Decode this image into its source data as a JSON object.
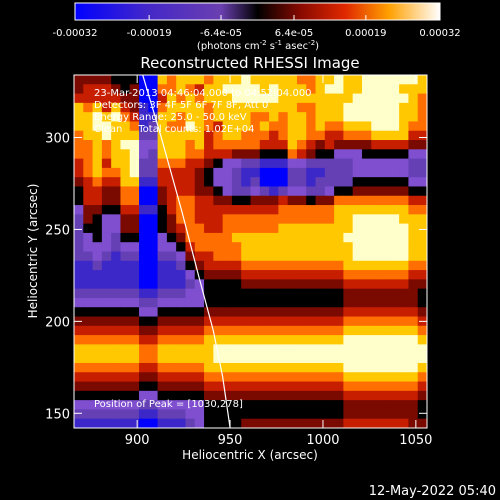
{
  "chart_data": {
    "type": "heatmap",
    "title": "Reconstructed RHESSI Image",
    "xlabel": "Heliocentric X (arcsec)",
    "ylabel": "Heliocentric Y (arcsec)",
    "xlim": [
      866,
      1056
    ],
    "ylim": [
      142,
      334
    ],
    "xticks": [
      900,
      950,
      1000,
      1050
    ],
    "yticks": [
      150,
      200,
      250,
      300
    ],
    "colorbar": {
      "range": [
        -0.00032,
        0.00032
      ],
      "tick_values": [
        -0.00032,
        -0.00019,
        -6.4e-05,
        6.4e-05,
        0.00019,
        0.00032
      ],
      "tick_labels": [
        "-0.00032",
        "-0.00019",
        "-6.4e-05",
        "6.4e-05",
        "0.00019",
        "0.00032"
      ],
      "units_main": "(photons cm",
      "units_exp1": "-2",
      "units_mid1": " s",
      "units_exp2": "-1",
      "units_mid2": " asec",
      "units_exp3": "-2",
      "units_end": ")"
    },
    "info_lines": [
      "23-Mar-2013 04:46:04.000 to 04:52:04.000",
      "Detectors: 3F 4F 5F 6F 7F 8F, Att 0",
      "Energy Range: 25.0 - 50.0 keV",
      "Clean     Total counts: 1.02E+04"
    ],
    "peak_text": "Position of Peak = [1030,278]",
    "peak": [
      1030,
      278
    ],
    "limb_curve": [
      [
        903,
        334
      ],
      [
        913,
        300
      ],
      [
        924,
        260
      ],
      [
        933,
        225
      ],
      [
        941,
        195
      ],
      [
        946,
        170
      ],
      [
        950,
        142
      ]
    ],
    "grid": {
      "nx": 38,
      "ny": 38,
      "rows_top_to_bottom": [
        "55554440087888788898888877889889999998",
        "56665450077876889999898887899889999888",
        "66666550068787888999998888888899999987",
        "87868651078888788888888877888999999887",
        "88989761188788788887787887888999999887",
        "88998871287798768887877887877888999877",
        "78898882288888678877767887766777888866",
        "77878993388878677777666876565555666655",
        "77878893288877666555444765443334444433",
        "67868892277766543322111332222233333322",
        "67877892266665433211000221122233333322",
        "56766881166665433212000221222244444433",
        "46655770056665543223212332234455555544",
        "46655770056776655445556554557777777766",
        "35544661146776666666667777778888888877",
        "25433550045776667777777777778899999888",
        "24433550045677667777778888888899999988",
        "23432440034577777888888888888999999988",
        "23332330033467777788888888888899999988",
        "22321220022356677788888888888899999988",
        "11211110011245666677777777777888888877",
        "11111110011134555566666666666777777766",
        "11111110011123444455555555555666666655",
        "22222221122233444444444444444555555554",
        "33333332233333444444444444444555555554",
        "44444443344444555555555555555666666665",
        "55555554455555666666666666666777777776",
        "66666665566666777777777777777888888887",
        "77777776677777888888888888888999999998",
        "88888887788888899999999999999999999999",
        "88888887788888899999999999999999999999",
        "77777776677777888888888888888999999998",
        "66666665566666777777777777777888888887",
        "55555554455555666666666666666777777776",
        "44444443344444555555555555555666666665",
        "33333332233333444444444444444555555554",
        "22222221122233444444444444444555555554",
        "11111110011123444455555555555666666655"
      ]
    }
  },
  "footer": {
    "timestamp": "12-May-2022 05:40"
  },
  "colors": {
    "background": "#000000",
    "foreground": "#ffffff",
    "palette": [
      "#0000ff",
      "#3c28c8",
      "#6440b4",
      "#7f4fd0",
      "#000000",
      "#7a0a00",
      "#c81e00",
      "#ff6e00",
      "#ffc800",
      "#ffffcc"
    ]
  }
}
